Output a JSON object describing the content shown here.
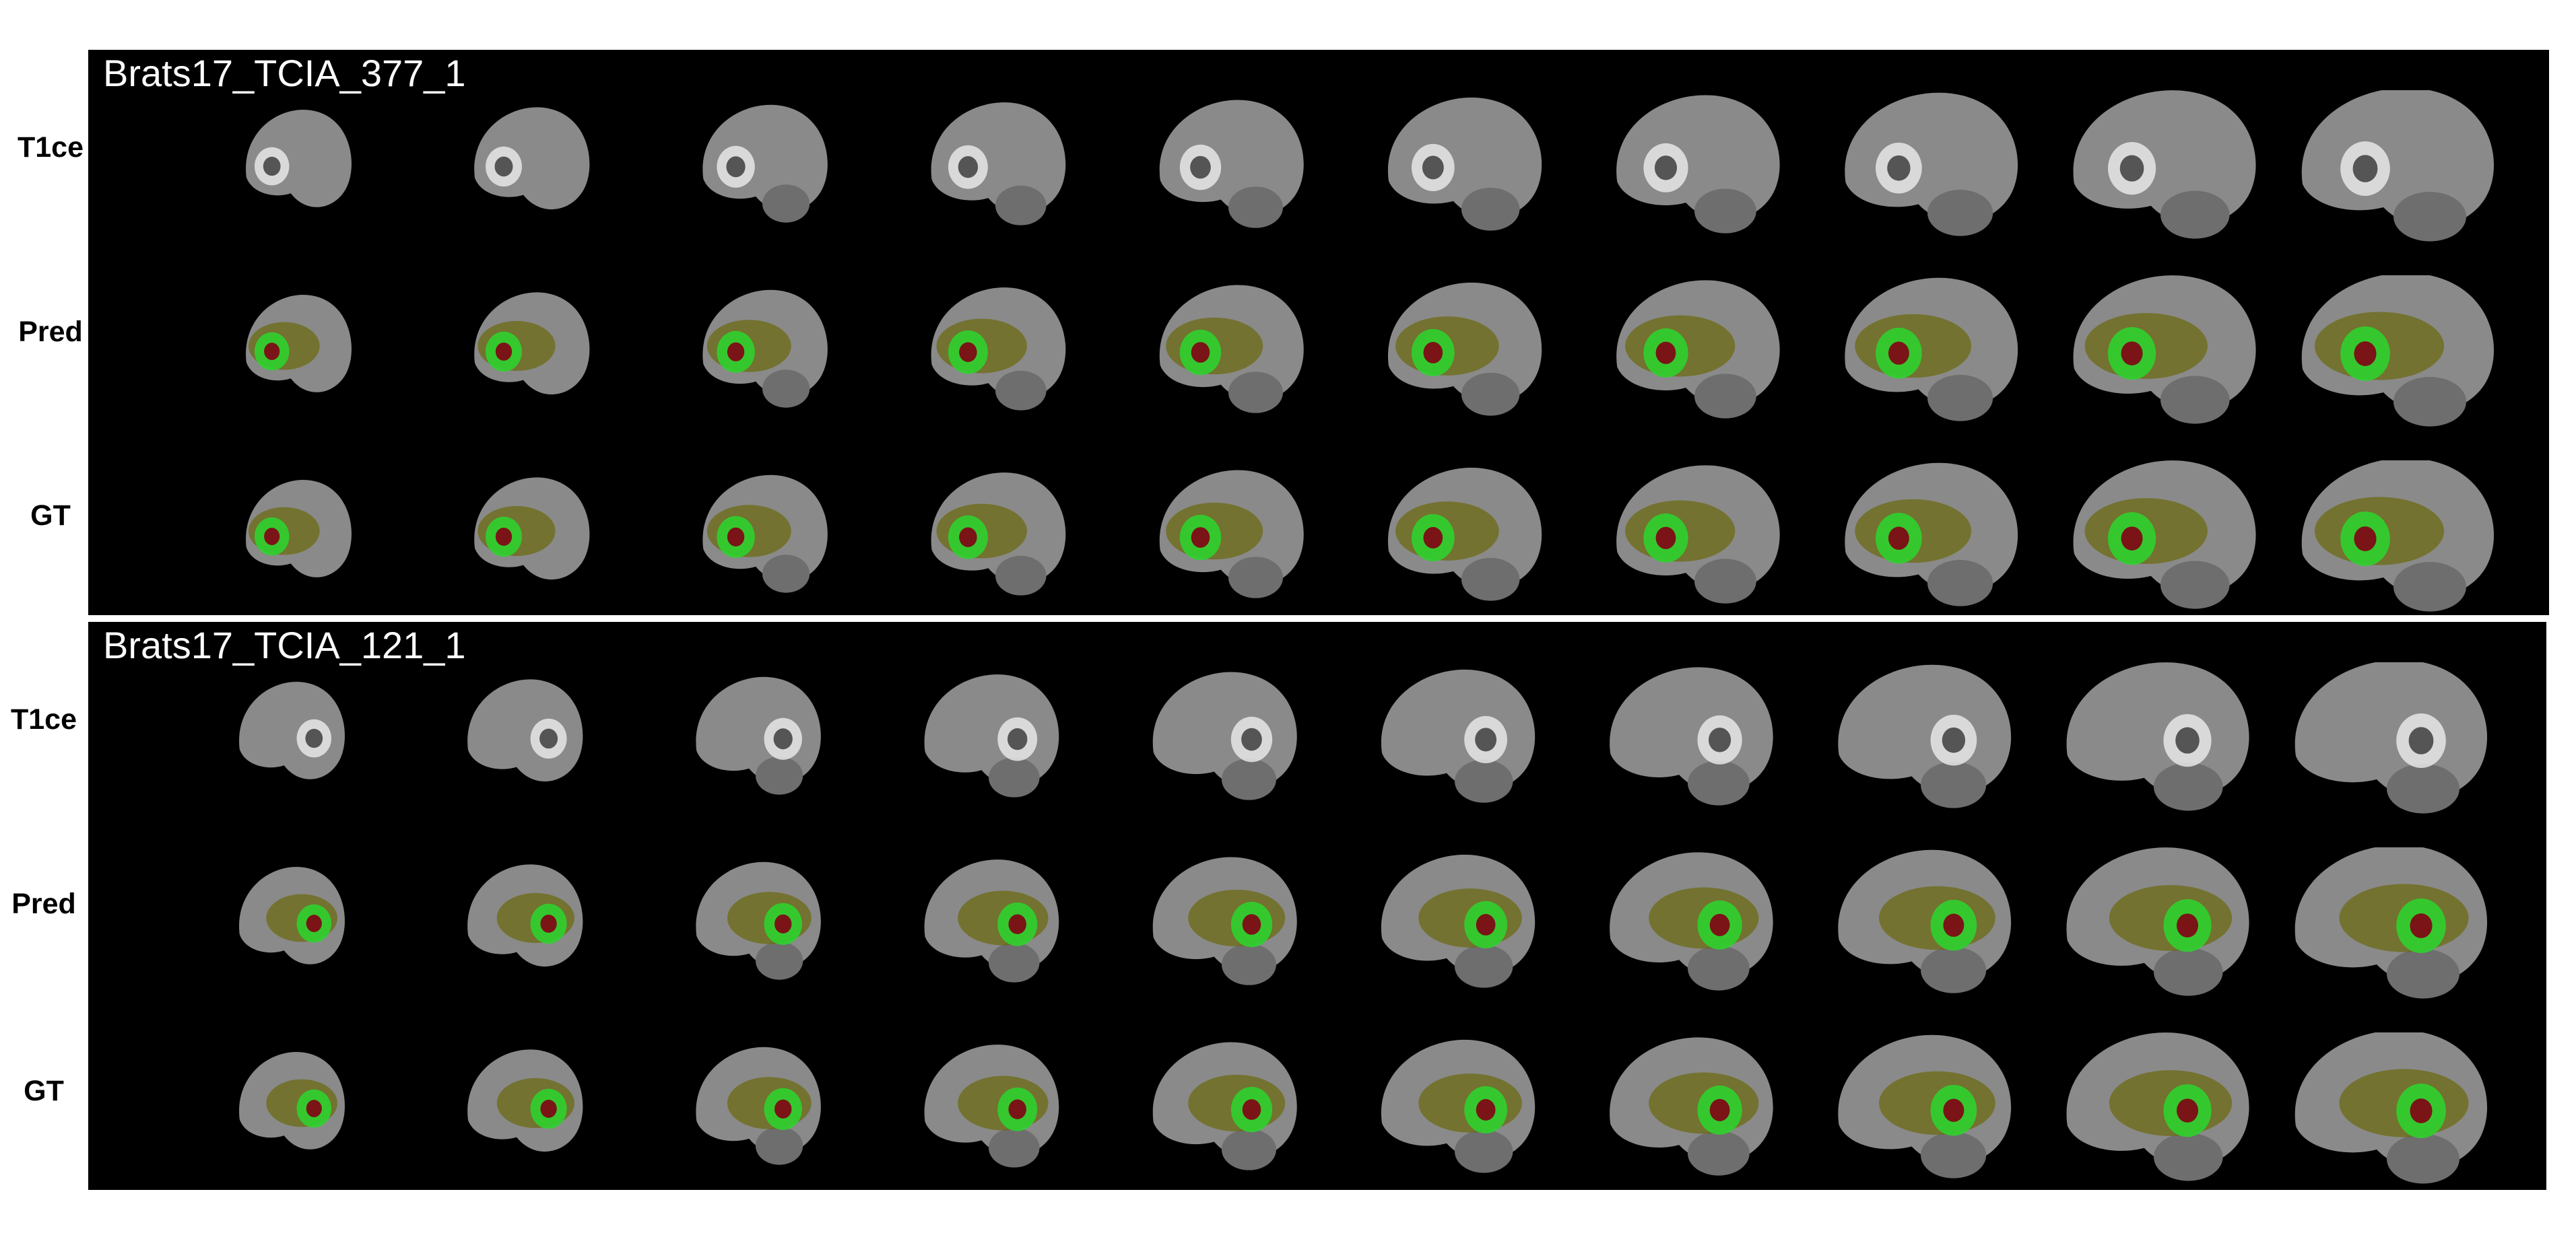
{
  "colors": {
    "background": "#ffffff",
    "panel": "#000000",
    "title": "#ffffff",
    "label": "#000000",
    "brain_tissue": "#8a8a8a",
    "edema_overlay": "#6b6a12",
    "enhancing_overlay": "#2fd12f",
    "necrosis_overlay": "#7a1416"
  },
  "panels": [
    {
      "title": "Brats17_TCIA_377_1",
      "rows": [
        {
          "label": "T1ce",
          "type": "mri"
        },
        {
          "label": "Pred",
          "type": "overlay"
        },
        {
          "label": "GT",
          "type": "overlay"
        }
      ]
    },
    {
      "title": "Brats17_TCIA_121_1",
      "rows": [
        {
          "label": "T1ce",
          "type": "mri"
        },
        {
          "label": "Pred",
          "type": "overlay"
        },
        {
          "label": "GT",
          "type": "overlay"
        }
      ]
    }
  ],
  "slices_per_row": 10
}
